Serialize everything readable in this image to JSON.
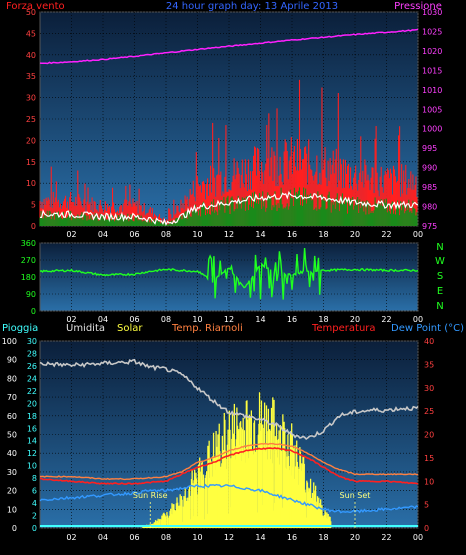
{
  "header": {
    "wind_label": "Forza vento",
    "title": "24 hour graph day: 13 Aprile 2013",
    "pressure_label": "Pressione"
  },
  "direction_labels": [
    "N",
    "W",
    "S",
    "E",
    "N"
  ],
  "legend": {
    "rain": "Pioggia",
    "humidity": "Umidita",
    "solar": "Solar",
    "dew_temp": "Temp. Riarnoli",
    "temperature": "Temperatura",
    "dew_point": "Dew Point (°C)"
  },
  "annotations": {
    "sunrise": "Sun Rise",
    "sunset": "Sun Set"
  },
  "colors": {
    "wind_avg": "#ff2020",
    "wind_gust": "#ffffff",
    "wind_green": "#1a8a1a",
    "pressure": "#ff20ff",
    "direction": "#20ff20",
    "humidity": "#c8c8c8",
    "solar": "#ffff40",
    "temperature": "#ff2020",
    "dewtemp": "#ff8040",
    "dewpoint": "#3399ff",
    "rain": "#40ffff"
  },
  "chart_data": [
    {
      "type": "line",
      "x_ticks": [
        "02",
        "04",
        "06",
        "08",
        "10",
        "12",
        "14",
        "16",
        "18",
        "20",
        "22",
        "00"
      ],
      "y_left_ticks": [
        "0",
        "5",
        "10",
        "15",
        "20",
        "25",
        "30",
        "35",
        "40",
        "45",
        "50"
      ],
      "y_right_ticks": [
        "975",
        "980",
        "985",
        "990",
        "995",
        "1000",
        "1005",
        "1010",
        "1015",
        "1020",
        "1025",
        "1030"
      ],
      "ylim_left": [
        0,
        50
      ],
      "ylim_right": [
        975,
        1030
      ],
      "series": [
        {
          "name": "Forza vento",
          "x": [
            0,
            2,
            4,
            6,
            7,
            8,
            9,
            10,
            12,
            14,
            16,
            18,
            20,
            22,
            24
          ],
          "values": [
            5,
            5,
            4,
            4,
            3,
            1,
            4,
            8,
            10,
            12,
            13,
            12,
            10,
            9,
            9
          ]
        },
        {
          "name": "Pressione",
          "x": [
            0,
            2,
            4,
            6,
            8,
            10,
            12,
            14,
            16,
            18,
            20,
            22,
            24
          ],
          "values": [
            1016.8,
            1017.2,
            1017.8,
            1018.6,
            1019.5,
            1020.4,
            1021.2,
            1022.0,
            1022.8,
            1023.5,
            1024.2,
            1024.8,
            1025.4
          ]
        }
      ]
    },
    {
      "type": "line",
      "x_ticks": [
        "02",
        "04",
        "06",
        "08",
        "10",
        "12",
        "14",
        "16",
        "18",
        "20",
        "22",
        "00"
      ],
      "y_ticks": [
        "0",
        "90",
        "180",
        "270",
        "360"
      ],
      "ylim": [
        0,
        360
      ],
      "series": [
        {
          "x": [
            0,
            2,
            4,
            6,
            7,
            8,
            10,
            11,
            12,
            13,
            14,
            15,
            16,
            17,
            18,
            20,
            22,
            24
          ],
          "values": [
            210,
            215,
            190,
            195,
            210,
            220,
            210,
            160,
            230,
            120,
            250,
            200,
            190,
            210,
            215,
            220,
            215,
            215
          ]
        }
      ]
    },
    {
      "type": "line",
      "x_ticks": [
        "02",
        "04",
        "06",
        "08",
        "10",
        "12",
        "14",
        "16",
        "18",
        "20",
        "22",
        "00"
      ],
      "y_left_ticks": [
        "0",
        "10",
        "20",
        "30",
        "40",
        "50",
        "60",
        "70",
        "80",
        "90",
        "100"
      ],
      "y_rain_ticks": [
        "0",
        "2",
        "4",
        "6",
        "8",
        "10",
        "12",
        "14",
        "16",
        "18",
        "20",
        "22",
        "24",
        "26",
        "28",
        "30"
      ],
      "y_right_ticks": [
        "0",
        "5",
        "10",
        "15",
        "20",
        "25",
        "30",
        "35",
        "40"
      ],
      "ylim_left": [
        0,
        100
      ],
      "ylim_right": [
        0,
        40
      ],
      "series": [
        {
          "name": "Umidita",
          "x": [
            0,
            2,
            4,
            6,
            7,
            8,
            9,
            10,
            11,
            12,
            13,
            14,
            15,
            16,
            17,
            18,
            19,
            20,
            21,
            22,
            23,
            24
          ],
          "values": [
            88,
            87,
            88,
            89,
            86,
            85,
            82,
            75,
            68,
            62,
            60,
            58,
            55,
            50,
            48,
            52,
            60,
            62,
            63,
            63,
            64,
            64
          ]
        },
        {
          "name": "Solar",
          "x": [
            0,
            6,
            7,
            8,
            9,
            10,
            11,
            12,
            13,
            14,
            15,
            16,
            17,
            18,
            19,
            24
          ],
          "values": [
            0,
            0,
            2,
            8,
            18,
            32,
            45,
            58,
            62,
            65,
            60,
            50,
            30,
            10,
            0,
            0
          ]
        },
        {
          "name": "Temperatura",
          "x": [
            0,
            2,
            4,
            6,
            8,
            9,
            10,
            11,
            12,
            13,
            14,
            15,
            16,
            17,
            18,
            19,
            20,
            22,
            24
          ],
          "values": [
            10.5,
            10,
            9.5,
            9.5,
            10,
            11.5,
            13,
            14,
            15.5,
            16.5,
            17,
            17,
            16.5,
            15,
            13,
            11,
            10,
            10,
            9.5
          ]
        },
        {
          "name": "Temp. Riarnoli",
          "x": [
            0,
            2,
            4,
            6,
            8,
            9,
            10,
            11,
            12,
            13,
            14,
            15,
            16,
            17,
            18,
            19,
            20,
            22,
            24
          ],
          "values": [
            11,
            11,
            10.5,
            10.5,
            11,
            12,
            14,
            15,
            16.5,
            17.5,
            18,
            18,
            17.5,
            16,
            14,
            12.5,
            11.5,
            11.5,
            11.5
          ]
        },
        {
          "name": "Dew Point (°C)",
          "x": [
            0,
            2,
            4,
            6,
            7,
            8,
            9,
            10,
            11,
            12,
            13,
            14,
            15,
            16,
            17,
            18,
            19,
            20,
            22,
            24
          ],
          "values": [
            6,
            6.5,
            7,
            7.5,
            8,
            8,
            8.5,
            9,
            9,
            9,
            8.5,
            8,
            7,
            6,
            5,
            4,
            3.5,
            3.5,
            4,
            4.5
          ]
        },
        {
          "name": "Pioggia",
          "x": [
            0,
            24
          ],
          "values": [
            0,
            0
          ]
        }
      ]
    }
  ]
}
